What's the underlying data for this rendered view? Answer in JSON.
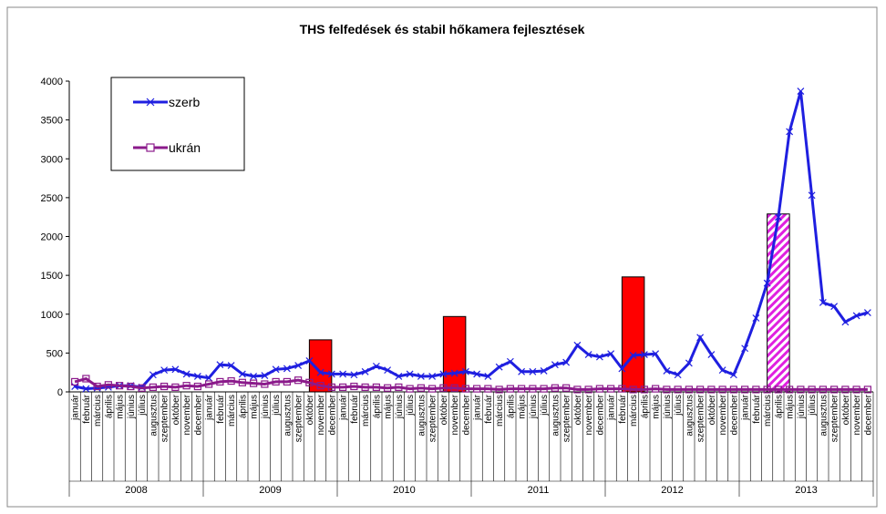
{
  "chart_data": {
    "type": "line",
    "title": "THS felfedések és stabil hőkamera fejlesztések",
    "categories": [
      "január",
      "február",
      "március",
      "április",
      "május",
      "június",
      "július",
      "augusztus",
      "szeptember",
      "október",
      "november",
      "december",
      "január",
      "február",
      "március",
      "április",
      "május",
      "június",
      "július",
      "augusztus",
      "szeptember",
      "október",
      "november",
      "december",
      "január",
      "február",
      "március",
      "április",
      "május",
      "június",
      "július",
      "augusztus",
      "szeptember",
      "október",
      "november",
      "december",
      "január",
      "február",
      "március",
      "április",
      "május",
      "június",
      "július",
      "augusztus",
      "szeptember",
      "október",
      "november",
      "december",
      "január",
      "február",
      "március",
      "április",
      "május",
      "június",
      "július",
      "augusztus",
      "szeptember",
      "október",
      "november",
      "december",
      "január",
      "február",
      "március",
      "április",
      "május",
      "június",
      "július",
      "augusztus",
      "szeptember",
      "október",
      "november",
      "december"
    ],
    "years": [
      "2008",
      "2009",
      "2010",
      "2011",
      "2012",
      "2013"
    ],
    "series": [
      {
        "name": "szerb",
        "color": "#1f1fe0",
        "marker": "x",
        "values": [
          70,
          40,
          50,
          60,
          80,
          80,
          60,
          220,
          280,
          290,
          230,
          200,
          180,
          350,
          340,
          230,
          200,
          210,
          290,
          300,
          340,
          400,
          250,
          230,
          230,
          220,
          260,
          330,
          280,
          200,
          230,
          200,
          200,
          230,
          240,
          260,
          230,
          200,
          320,
          390,
          260,
          260,
          270,
          350,
          380,
          600,
          480,
          450,
          490,
          300,
          470,
          480,
          490,
          270,
          220,
          370,
          700,
          480,
          280,
          220,
          560,
          950,
          1400,
          2250,
          3350,
          3870,
          2530,
          1150,
          1100,
          900,
          980,
          1020
        ]
      },
      {
        "name": "ukrán",
        "color": "#8b1a8b",
        "marker": "square",
        "values": [
          130,
          170,
          70,
          90,
          80,
          70,
          50,
          60,
          70,
          60,
          80,
          70,
          100,
          130,
          140,
          120,
          110,
          100,
          130,
          130,
          150,
          120,
          80,
          60,
          60,
          70,
          60,
          60,
          50,
          60,
          40,
          50,
          40,
          50,
          50,
          40,
          40,
          40,
          30,
          40,
          40,
          40,
          40,
          50,
          50,
          30,
          30,
          40,
          40,
          40,
          30,
          30,
          40,
          30,
          30,
          30,
          30,
          30,
          30,
          30,
          30,
          30,
          30,
          30,
          30,
          30,
          30,
          30,
          30,
          30,
          30,
          30
        ]
      }
    ],
    "bar_series": [
      {
        "color": "#ff0000",
        "values": [
          null,
          null,
          null,
          null,
          null,
          null,
          null,
          null,
          null,
          null,
          null,
          null,
          null,
          null,
          null,
          null,
          null,
          null,
          null,
          null,
          null,
          null,
          670,
          null,
          null,
          null,
          null,
          null,
          null,
          null,
          null,
          null,
          null,
          null,
          970,
          null,
          null,
          null,
          null,
          null,
          null,
          null,
          null,
          null,
          null,
          null,
          null,
          null,
          null,
          null,
          1480,
          null,
          null,
          null,
          null,
          null,
          null,
          null,
          null,
          null,
          null,
          null,
          null,
          null,
          null,
          null,
          null,
          null,
          null,
          null,
          null,
          null
        ]
      },
      {
        "color": "#e020e0",
        "pattern": "hatch",
        "values": [
          null,
          null,
          null,
          null,
          null,
          null,
          null,
          null,
          null,
          null,
          null,
          null,
          null,
          null,
          null,
          null,
          null,
          null,
          null,
          null,
          null,
          null,
          null,
          null,
          null,
          null,
          null,
          null,
          null,
          null,
          null,
          null,
          null,
          null,
          null,
          null,
          null,
          null,
          null,
          null,
          null,
          null,
          null,
          null,
          null,
          null,
          null,
          null,
          null,
          null,
          null,
          null,
          null,
          null,
          null,
          null,
          null,
          null,
          null,
          null,
          null,
          null,
          null,
          2290,
          null,
          null,
          null,
          null,
          null,
          null,
          null,
          null
        ]
      }
    ],
    "ylim": [
      0,
      4000
    ],
    "yticks": [
      0,
      500,
      1000,
      1500,
      2000,
      2500,
      3000,
      3500,
      4000
    ],
    "legend": "top-left"
  }
}
